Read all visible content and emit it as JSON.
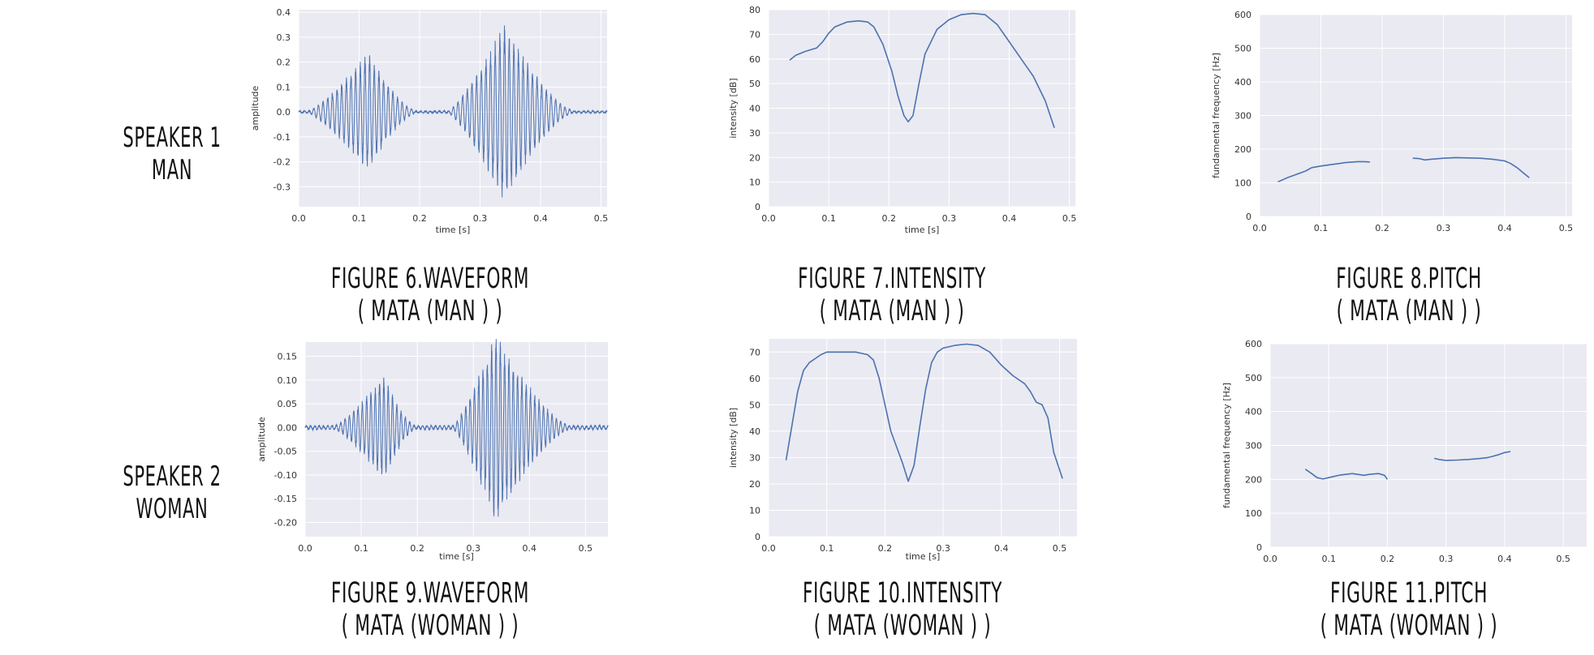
{
  "speakers": [
    {
      "line1": "SPEAKER 1",
      "line2": "MAN"
    },
    {
      "line1": "SPEAKER 2",
      "line2": "WOMAN"
    }
  ],
  "captions": [
    {
      "line1": "FIGURE 6.WAVEFORM",
      "line2": "( MATA (MAN ) )"
    },
    {
      "line1": "FIGURE 7.INTENSITY",
      "line2": "( MATA (MAN ) )"
    },
    {
      "line1": "FIGURE 8.PITCH",
      "line2": "( MATA (MAN ) )"
    },
    {
      "line1": "FIGURE 9.WAVEFORM",
      "line2": "( MATA (WOMAN ) )"
    },
    {
      "line1": "FIGURE 10.INTENSITY",
      "line2": "( MATA (WOMAN ) )"
    },
    {
      "line1": "FIGURE 11.PITCH",
      "line2": "( MATA (WOMAN ) )"
    }
  ],
  "colors": {
    "line": "#4c72b0",
    "plot_bg": "#eaeaf2",
    "grid": "#ffffff"
  },
  "chart_data": [
    {
      "type": "line",
      "title": "",
      "xlabel": "time [s]",
      "ylabel": "amplitude",
      "xlim": [
        0,
        0.51
      ],
      "ylim": [
        -0.38,
        0.41
      ],
      "grid": true,
      "xticks": [
        "0.0",
        "0.1",
        "0.2",
        "0.3",
        "0.4",
        "0.5"
      ],
      "yticks": [
        "-0.3",
        "-0.2",
        "-0.1",
        "0.0",
        "0.1",
        "0.2",
        "0.3",
        "0.4"
      ],
      "waveform": {
        "duration": 0.51,
        "bursts": [
          {
            "start": 0.02,
            "end": 0.19,
            "peak_time": 0.115,
            "peak_amp": 0.24,
            "min_amp": 0.01
          },
          {
            "start": 0.25,
            "end": 0.45,
            "peak_time": 0.34,
            "peak_amp": 0.36,
            "min_amp": 0.01
          }
        ]
      }
    },
    {
      "type": "line",
      "title": "",
      "xlabel": "time [s]",
      "ylabel": "intensity [dB]",
      "xlim": [
        0,
        0.51
      ],
      "ylim": [
        0,
        80
      ],
      "grid": true,
      "xticks": [
        "0.0",
        "0.1",
        "0.2",
        "0.3",
        "0.4",
        "0.5"
      ],
      "yticks": [
        "0",
        "10",
        "20",
        "30",
        "40",
        "50",
        "60",
        "70",
        "80"
      ],
      "series": [
        {
          "x": [
            0.035,
            0.045,
            0.06,
            0.08,
            0.09,
            0.1,
            0.11,
            0.13,
            0.15,
            0.165,
            0.175,
            0.19,
            0.205,
            0.215,
            0.225,
            0.232,
            0.24,
            0.25,
            0.26,
            0.28,
            0.3,
            0.32,
            0.34,
            0.36,
            0.38,
            0.4,
            0.42,
            0.44,
            0.46,
            0.475
          ],
          "y": [
            59.5,
            61.5,
            63,
            64.5,
            67,
            70.5,
            73,
            75,
            75.5,
            75,
            73,
            66,
            55,
            45,
            37,
            34.5,
            37,
            50,
            62,
            72,
            76,
            78,
            78.5,
            78,
            74,
            67,
            60,
            53,
            43,
            32
          ]
        }
      ]
    },
    {
      "type": "line",
      "title": "",
      "xlabel": "",
      "ylabel": "fundamental frequency [Hz]",
      "xlim": [
        0,
        0.51
      ],
      "ylim": [
        0,
        600
      ],
      "grid": true,
      "xticks": [
        "0.0",
        "0.1",
        "0.2",
        "0.3",
        "0.4",
        "0.5"
      ],
      "yticks": [
        "0",
        "100",
        "200",
        "300",
        "400",
        "500",
        "600"
      ],
      "series": [
        {
          "x": [
            0.03,
            0.045,
            0.06,
            0.075,
            0.085,
            0.1,
            0.12,
            0.14,
            0.16,
            0.17,
            0.18
          ],
          "y": [
            103,
            115,
            125,
            135,
            145,
            150,
            155,
            160,
            163,
            163,
            162
          ]
        },
        {
          "x": [
            0.25,
            0.26,
            0.27,
            0.28,
            0.3,
            0.32,
            0.34,
            0.36,
            0.38,
            0.4,
            0.41,
            0.42,
            0.44
          ],
          "y": [
            173,
            172,
            168,
            170,
            173,
            175,
            174,
            173,
            170,
            165,
            157,
            145,
            115
          ]
        }
      ]
    },
    {
      "type": "line",
      "title": "",
      "xlabel": "time [s]",
      "ylabel": "amplitude",
      "xlim": [
        0,
        0.54
      ],
      "ylim": [
        -0.23,
        0.18
      ],
      "grid": true,
      "xticks": [
        "0.0",
        "0.1",
        "0.2",
        "0.3",
        "0.4",
        "0.5"
      ],
      "yticks": [
        "-0.20",
        "-0.15",
        "-0.10",
        "-0.05",
        "0.00",
        "0.05",
        "0.10",
        "0.15"
      ],
      "waveform": {
        "duration": 0.54,
        "bursts": [
          {
            "start": 0.055,
            "end": 0.195,
            "peak_time": 0.14,
            "peak_amp": 0.11,
            "min_amp": 0.005
          },
          {
            "start": 0.265,
            "end": 0.47,
            "peak_time": 0.34,
            "peak_amp": 0.2,
            "min_amp": 0.005
          }
        ]
      }
    },
    {
      "type": "line",
      "title": "",
      "xlabel": "time [s]",
      "ylabel": "intensity [dB]",
      "xlim": [
        0,
        0.53
      ],
      "ylim": [
        0,
        75
      ],
      "grid": true,
      "xticks": [
        "0.0",
        "0.1",
        "0.2",
        "0.3",
        "0.4",
        "0.5"
      ],
      "yticks": [
        "0",
        "10",
        "20",
        "30",
        "40",
        "50",
        "60",
        "70"
      ],
      "series": [
        {
          "x": [
            0.03,
            0.04,
            0.05,
            0.06,
            0.07,
            0.08,
            0.09,
            0.1,
            0.12,
            0.15,
            0.17,
            0.18,
            0.19,
            0.2,
            0.21,
            0.23,
            0.24,
            0.25,
            0.26,
            0.27,
            0.28,
            0.29,
            0.3,
            0.32,
            0.34,
            0.36,
            0.38,
            0.4,
            0.42,
            0.44,
            0.45,
            0.46,
            0.47,
            0.48,
            0.49,
            0.505
          ],
          "y": [
            29,
            42,
            55,
            63,
            66,
            67.5,
            69,
            70,
            70,
            70,
            69,
            67,
            60,
            50,
            40,
            28,
            21,
            27,
            42,
            56,
            66,
            70,
            71.5,
            72.5,
            73,
            72.5,
            70,
            65,
            61,
            58,
            55,
            51,
            50,
            45,
            32,
            22
          ]
        }
      ]
    },
    {
      "type": "line",
      "title": "",
      "xlabel": "",
      "ylabel": "fundamental frequency [Hz]",
      "xlim": [
        0,
        0.54
      ],
      "ylim": [
        0,
        600
      ],
      "grid": true,
      "xticks": [
        "0.0",
        "0.1",
        "0.2",
        "0.3",
        "0.4",
        "0.5"
      ],
      "yticks": [
        "0",
        "100",
        "200",
        "300",
        "400",
        "500",
        "600"
      ],
      "series": [
        {
          "x": [
            0.06,
            0.07,
            0.08,
            0.09,
            0.1,
            0.12,
            0.14,
            0.16,
            0.17,
            0.185,
            0.195,
            0.2
          ],
          "y": [
            230,
            218,
            205,
            201,
            205,
            213,
            217,
            212,
            215,
            217,
            212,
            200
          ]
        },
        {
          "x": [
            0.28,
            0.29,
            0.3,
            0.32,
            0.34,
            0.36,
            0.37,
            0.38,
            0.39,
            0.4,
            0.41
          ],
          "y": [
            262,
            258,
            256,
            257,
            259,
            262,
            264,
            268,
            273,
            279,
            282
          ]
        }
      ]
    }
  ]
}
